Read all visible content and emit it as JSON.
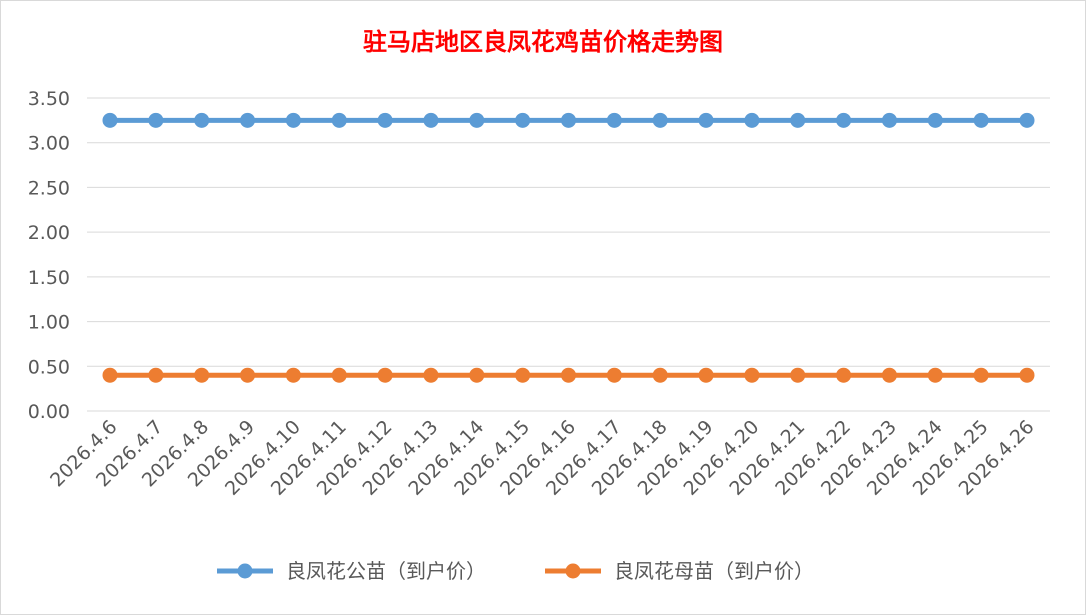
{
  "chart_data": {
    "type": "line",
    "title": "驻马店地区良凤花鸡苗价格走势图",
    "categories": [
      "2026.4.6",
      "2026.4.7",
      "2026.4.8",
      "2026.4.9",
      "2026.4.10",
      "2026.4.11",
      "2026.4.12",
      "2026.4.13",
      "2026.4.14",
      "2026.4.15",
      "2026.4.16",
      "2026.4.17",
      "2026.4.18",
      "2026.4.19",
      "2026.4.20",
      "2026.4.21",
      "2026.4.22",
      "2026.4.23",
      "2026.4.24",
      "2026.4.25",
      "2026.4.26"
    ],
    "series": [
      {
        "name": "良凤花公苗（到户价）",
        "color": "#5b9bd5",
        "values": [
          3.25,
          3.25,
          3.25,
          3.25,
          3.25,
          3.25,
          3.25,
          3.25,
          3.25,
          3.25,
          3.25,
          3.25,
          3.25,
          3.25,
          3.25,
          3.25,
          3.25,
          3.25,
          3.25,
          3.25,
          3.25
        ]
      },
      {
        "name": "良凤花母苗（到户价）",
        "color": "#ed7d31",
        "values": [
          0.4,
          0.4,
          0.4,
          0.4,
          0.4,
          0.4,
          0.4,
          0.4,
          0.4,
          0.4,
          0.4,
          0.4,
          0.4,
          0.4,
          0.4,
          0.4,
          0.4,
          0.4,
          0.4,
          0.4,
          0.4
        ]
      }
    ],
    "yticks": [
      "0.00",
      "0.50",
      "1.00",
      "1.50",
      "2.00",
      "2.50",
      "3.00",
      "3.50"
    ],
    "ylim": [
      0,
      3.5
    ],
    "grid": true,
    "legend": "bottom"
  }
}
